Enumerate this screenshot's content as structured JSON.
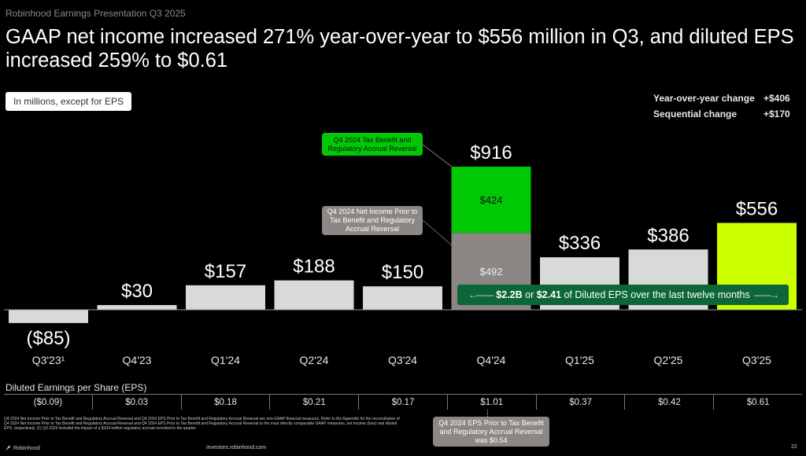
{
  "deck_title": "Robinhood Earnings Presentation Q3 2025",
  "headline": "GAAP net income increased 271% year-over-year to $556 million in Q3, and diluted EPS increased 259% to $0.61",
  "units_note": "In millions, except for EPS",
  "changes": [
    {
      "label": "Year-over-year change",
      "value": "+$406"
    },
    {
      "label": "Sequential change",
      "value": "+$170"
    }
  ],
  "callouts": {
    "tax_benefit": "Q4 2024 Tax Benefit and Regulatory Accrual Reversal",
    "net_income_prior": "Q4 2024 Net Income Prior to Tax Benefit and Regulatory Accrual Reversal",
    "eps_prior": "Q4 2024 EPS Prior to Tax Benefit and Regulatory Accrual Reversal was $0.54"
  },
  "ltm_banner": {
    "arrow_left": "←——",
    "arrow_right": "——→",
    "amount": "$2.2B",
    "or": " or ",
    "eps": "$2.41",
    "rest": " of Diluted EPS over the last twelve months"
  },
  "colors": {
    "bar_default": "#d9d9d9",
    "bar_highlight": "#ccff00",
    "bar_tax_benefit": "#00c805",
    "bar_prior": "#8c8784",
    "banner": "#0c6637"
  },
  "chart_data": {
    "type": "bar",
    "title": "GAAP Net Income",
    "ylabel": "In millions",
    "categories": [
      "Q3'23¹",
      "Q4'23",
      "Q1'24",
      "Q2'24",
      "Q3'24",
      "Q4'24",
      "Q1'25",
      "Q2'25",
      "Q3'25"
    ],
    "values": [
      -85,
      30,
      157,
      188,
      150,
      916,
      336,
      386,
      556
    ],
    "labels": [
      "($85)",
      "$30",
      "$157",
      "$188",
      "$150",
      "$916",
      "$336",
      "$386",
      "$556"
    ],
    "stacked_q4_24": {
      "segments": [
        {
          "name": "Net Income Prior to Tax Benefit and Regulatory Accrual Reversal",
          "value": 492,
          "label": "$492"
        },
        {
          "name": "Tax Benefit and Regulatory Accrual Reversal",
          "value": 424,
          "label": "$424"
        }
      ]
    },
    "highlight_index": 8,
    "ylim": [
      -85,
      916
    ],
    "grid": false,
    "legend": "none",
    "eps_title": "Diluted Earnings per Share (EPS)",
    "eps": [
      "($0.09)",
      "$0.03",
      "$0.18",
      "$0.21",
      "$0.17",
      "$1.01",
      "$0.37",
      "$0.42",
      "$0.61"
    ]
  },
  "footnote": "Q4 2024 Net Income Prior to Tax Benefit and Regulatory Accrual Reversal and Q4 2024 EPS Prior to Tax Benefit and Regulatory Accrual Reversal are non-GAAP financial measures. Refer to the Appendix for the reconciliation of Q4 2024 Net Income Prior to Tax Benefit and Regulatory Accrual Reversal and Q4 2024 EPS Prior to Tax Benefit and Regulatory Accrual Reversal to the most directly comparable GAAP measures, net income (loss) and diluted EPS, respectively. (1) Q3 2023 included the impact of a $104 million regulatory accrual recorded in the quarter.",
  "brand": "Robinhood",
  "site": "investors.robinhood.com",
  "page_number": "22"
}
